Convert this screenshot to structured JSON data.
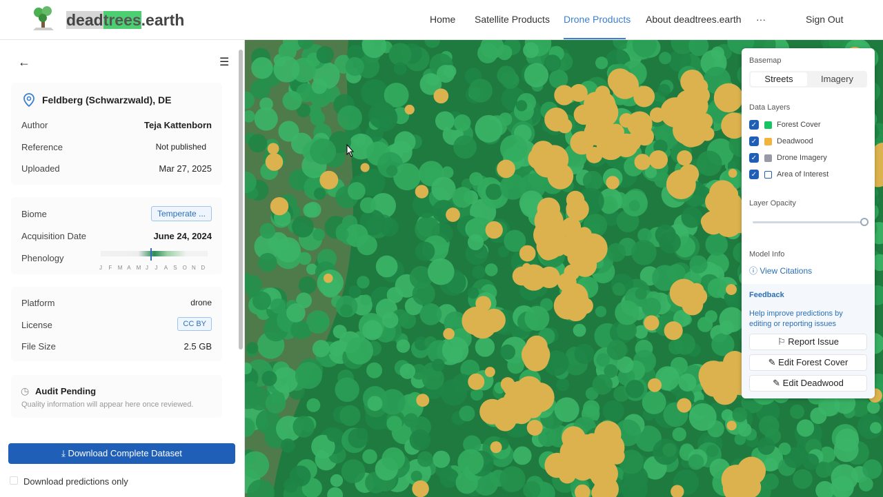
{
  "header": {
    "logo": [
      "dead",
      "trees",
      ".earth"
    ],
    "nav": [
      "Home",
      "Satellite Products",
      "Drone Products",
      "About deadtrees.earth",
      "···"
    ],
    "active_nav": "Drone Products",
    "sign_out": "Sign Out"
  },
  "sidebar": {
    "location": "Feldberg (Schwarzwald), DE",
    "meta": [
      [
        "Author",
        "Teja Kattenborn"
      ],
      [
        "Reference",
        "Not published"
      ],
      [
        "Uploaded",
        "Mar 27, 2025"
      ]
    ],
    "biome_label": "Biome",
    "biome_value": "Temperate ...",
    "acquisition_label": "Acquisition Date",
    "acquisition_value": "June 24, 2024",
    "phenology_label": "Phenology",
    "months": [
      "J",
      "F",
      "M",
      "A",
      "M",
      "J",
      "J",
      "A",
      "S",
      "O",
      "N",
      "D"
    ],
    "tech": [
      [
        "Platform",
        "drone"
      ],
      [
        "License",
        "CC BY"
      ],
      [
        "File Size",
        "2.5 GB"
      ]
    ],
    "audit_title": "Audit Pending",
    "audit_text": "Quality information will appear here once reviewed.",
    "download": "Download Complete Dataset",
    "predictions_only": "Download predictions only"
  },
  "panel": {
    "basemap_title": "Basemap",
    "basemap_options": [
      "Streets",
      "Imagery"
    ],
    "layers_title": "Data Layers",
    "layers": [
      {
        "name": "Forest Cover",
        "color": "#16c464",
        "checked": true
      },
      {
        "name": "Deadwood",
        "color": "#f2b43c",
        "checked": true
      },
      {
        "name": "Drone Imagery",
        "color": "#9a9aa6",
        "checked": true
      },
      {
        "name": "Area of Interest",
        "color": "#ffffff",
        "checked": true
      }
    ],
    "opacity_title": "Layer Opacity",
    "model_title": "Model Info",
    "citations": "View Citations",
    "feedback_title": "Feedback",
    "feedback_text": "Help improve predictions by editing or reporting issues",
    "actions": [
      "Report Issue",
      "Edit Forest Cover",
      "Edit Deadwood"
    ]
  }
}
